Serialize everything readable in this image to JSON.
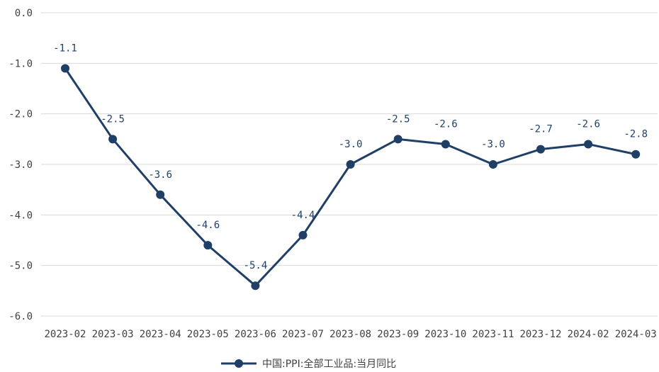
{
  "chart_data": {
    "type": "line",
    "categories": [
      "2023-02",
      "2023-03",
      "2023-04",
      "2023-05",
      "2023-06",
      "2023-07",
      "2023-08",
      "2023-09",
      "2023-10",
      "2023-11",
      "2023-12",
      "2024-02",
      "2024-03"
    ],
    "series": [
      {
        "name": "中国:PPI:全部工业品:当月同比",
        "values": [
          -1.1,
          -2.5,
          -3.6,
          -4.6,
          -5.4,
          -4.4,
          -3.0,
          -2.5,
          -2.6,
          -3.0,
          -2.7,
          -2.6,
          -2.8
        ],
        "labels": [
          "-1.1",
          "-2.5",
          "-3.6",
          "-4.6",
          "-5.4",
          "-4.4",
          "-3.0",
          "-2.5",
          "-2.6",
          "-3.0",
          "-2.7",
          "-2.6",
          "-2.8"
        ]
      }
    ],
    "yticks": [
      {
        "value": 0,
        "label": "0.0"
      },
      {
        "value": -1,
        "label": "-1.0"
      },
      {
        "value": -2,
        "label": "-2.0"
      },
      {
        "value": -3,
        "label": "-3.0"
      },
      {
        "value": -4,
        "label": "-4.0"
      },
      {
        "value": -5,
        "label": "-5.0"
      },
      {
        "value": -6,
        "label": "-6.0"
      }
    ],
    "ylim": [
      -6,
      0
    ],
    "grid": true,
    "legend_position": "bottom",
    "color": "#1f3f66"
  }
}
